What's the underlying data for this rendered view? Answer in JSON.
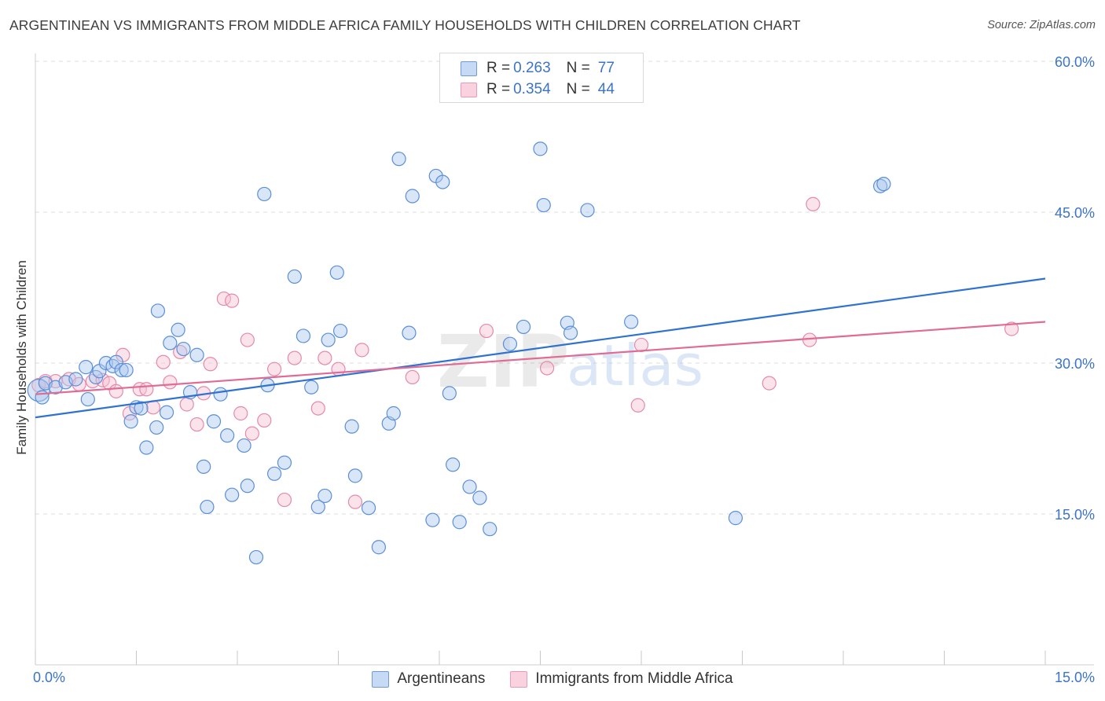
{
  "title": "ARGENTINEAN VS IMMIGRANTS FROM MIDDLE AFRICA FAMILY HOUSEHOLDS WITH CHILDREN CORRELATION CHART",
  "source": "Source: ZipAtlas.com",
  "watermark": {
    "zip": "ZIP",
    "atlas": "atlas"
  },
  "colors": {
    "blue_fill": "#aac8f0",
    "blue_stroke": "#5b8fd6",
    "blue_line": "#2f72d0",
    "pink_fill": "#f7c2d2",
    "pink_stroke": "#e58aa8",
    "pink_line": "#e06b94",
    "accent_text": "#3b74c7",
    "grid": "#dcdcdc"
  },
  "legend_top": [
    {
      "r_label": "R =",
      "r_value": "0.263",
      "n_label": "N =",
      "n_value": "77"
    },
    {
      "r_label": "R =",
      "r_value": "0.354",
      "n_label": "N =",
      "n_value": "44"
    }
  ],
  "legend_bottom": [
    "Argentineans",
    "Immigrants from Middle Africa"
  ],
  "chart_data": {
    "type": "scatter",
    "title": "ARGENTINEAN VS IMMIGRANTS FROM MIDDLE AFRICA FAMILY HOUSEHOLDS WITH CHILDREN CORRELATION CHART",
    "xlabel": "",
    "ylabel": "Family Households with Children",
    "xlim": [
      0,
      15
    ],
    "ylim": [
      0,
      60
    ],
    "x_tick_labels": [
      "0.0%",
      "15.0%"
    ],
    "y_tick_labels": [
      "15.0%",
      "30.0%",
      "45.0%",
      "60.0%"
    ],
    "y_tick_values": [
      15,
      30,
      45,
      60
    ],
    "grid": true,
    "series": [
      {
        "name": "Argentineans",
        "r": 0.263,
        "n": 77,
        "trend": {
          "x0": 0,
          "y0": 24.6,
          "x1": 15,
          "y1": 38.4
        },
        "points": [
          [
            0.05,
            27.3
          ],
          [
            0.1,
            26.6
          ],
          [
            0.15,
            28.0
          ],
          [
            0.3,
            27.6
          ],
          [
            0.45,
            28.1
          ],
          [
            0.6,
            28.4
          ],
          [
            0.75,
            29.6
          ],
          [
            0.9,
            28.6
          ],
          [
            0.78,
            26.4
          ],
          [
            0.95,
            29.2
          ],
          [
            1.05,
            30.0
          ],
          [
            1.15,
            29.7
          ],
          [
            1.2,
            30.1
          ],
          [
            1.28,
            29.3
          ],
          [
            1.35,
            29.3
          ],
          [
            1.42,
            24.2
          ],
          [
            1.5,
            25.6
          ],
          [
            1.57,
            25.5
          ],
          [
            1.65,
            21.6
          ],
          [
            1.8,
            23.6
          ],
          [
            1.82,
            35.2
          ],
          [
            1.95,
            25.1
          ],
          [
            2.0,
            32.0
          ],
          [
            2.12,
            33.3
          ],
          [
            2.2,
            31.4
          ],
          [
            2.3,
            27.1
          ],
          [
            2.4,
            30.8
          ],
          [
            2.5,
            19.7
          ],
          [
            2.55,
            15.7
          ],
          [
            2.65,
            24.2
          ],
          [
            2.75,
            26.9
          ],
          [
            2.85,
            22.8
          ],
          [
            2.92,
            16.9
          ],
          [
            3.1,
            21.8
          ],
          [
            3.15,
            17.8
          ],
          [
            3.28,
            10.7
          ],
          [
            3.4,
            46.8
          ],
          [
            3.45,
            27.8
          ],
          [
            3.55,
            19.0
          ],
          [
            3.7,
            20.1
          ],
          [
            3.85,
            38.6
          ],
          [
            3.98,
            32.7
          ],
          [
            4.1,
            27.6
          ],
          [
            4.2,
            15.7
          ],
          [
            4.3,
            16.8
          ],
          [
            4.35,
            32.3
          ],
          [
            4.48,
            39.0
          ],
          [
            4.53,
            33.2
          ],
          [
            4.7,
            23.7
          ],
          [
            4.75,
            18.8
          ],
          [
            4.95,
            15.6
          ],
          [
            5.1,
            11.7
          ],
          [
            5.25,
            24.0
          ],
          [
            5.32,
            25.0
          ],
          [
            5.4,
            50.3
          ],
          [
            5.55,
            33.0
          ],
          [
            5.6,
            46.6
          ],
          [
            5.9,
            14.4
          ],
          [
            5.95,
            48.6
          ],
          [
            6.05,
            48.0
          ],
          [
            6.15,
            27.0
          ],
          [
            6.2,
            19.9
          ],
          [
            6.3,
            14.2
          ],
          [
            6.45,
            17.7
          ],
          [
            6.6,
            16.6
          ],
          [
            6.75,
            13.5
          ],
          [
            7.05,
            31.9
          ],
          [
            7.25,
            33.6
          ],
          [
            7.5,
            51.3
          ],
          [
            7.55,
            45.7
          ],
          [
            7.9,
            34.0
          ],
          [
            7.95,
            33.0
          ],
          [
            8.2,
            45.2
          ],
          [
            8.85,
            34.1
          ],
          [
            10.4,
            14.6
          ],
          [
            12.55,
            47.6
          ],
          [
            12.6,
            47.8
          ]
        ]
      },
      {
        "name": "Immigrants from Middle Africa",
        "r": 0.354,
        "n": 44,
        "trend": {
          "x0": 0,
          "y0": 26.9,
          "x1": 15,
          "y1": 34.1
        },
        "points": [
          [
            0.05,
            27.8
          ],
          [
            0.15,
            28.2
          ],
          [
            0.3,
            28.2
          ],
          [
            0.5,
            28.4
          ],
          [
            0.65,
            27.9
          ],
          [
            0.85,
            28.2
          ],
          [
            1.0,
            28.3
          ],
          [
            1.1,
            28.0
          ],
          [
            1.2,
            27.2
          ],
          [
            1.3,
            30.8
          ],
          [
            1.4,
            25.0
          ],
          [
            1.55,
            27.4
          ],
          [
            1.65,
            27.4
          ],
          [
            1.75,
            25.6
          ],
          [
            1.9,
            30.1
          ],
          [
            2.0,
            28.1
          ],
          [
            2.15,
            31.1
          ],
          [
            2.25,
            25.9
          ],
          [
            2.4,
            23.9
          ],
          [
            2.5,
            27.0
          ],
          [
            2.6,
            29.9
          ],
          [
            2.8,
            36.4
          ],
          [
            2.92,
            36.2
          ],
          [
            3.05,
            25.0
          ],
          [
            3.15,
            32.3
          ],
          [
            3.22,
            23.0
          ],
          [
            3.4,
            24.3
          ],
          [
            3.55,
            29.4
          ],
          [
            3.7,
            16.4
          ],
          [
            3.85,
            30.5
          ],
          [
            4.2,
            25.5
          ],
          [
            4.3,
            30.5
          ],
          [
            4.5,
            29.4
          ],
          [
            4.75,
            16.2
          ],
          [
            4.85,
            31.3
          ],
          [
            5.6,
            28.6
          ],
          [
            6.7,
            33.2
          ],
          [
            7.6,
            29.5
          ],
          [
            8.95,
            25.8
          ],
          [
            9.0,
            31.8
          ],
          [
            10.9,
            28.0
          ],
          [
            11.55,
            45.8
          ],
          [
            11.5,
            32.3
          ],
          [
            14.5,
            33.4
          ]
        ]
      }
    ]
  }
}
